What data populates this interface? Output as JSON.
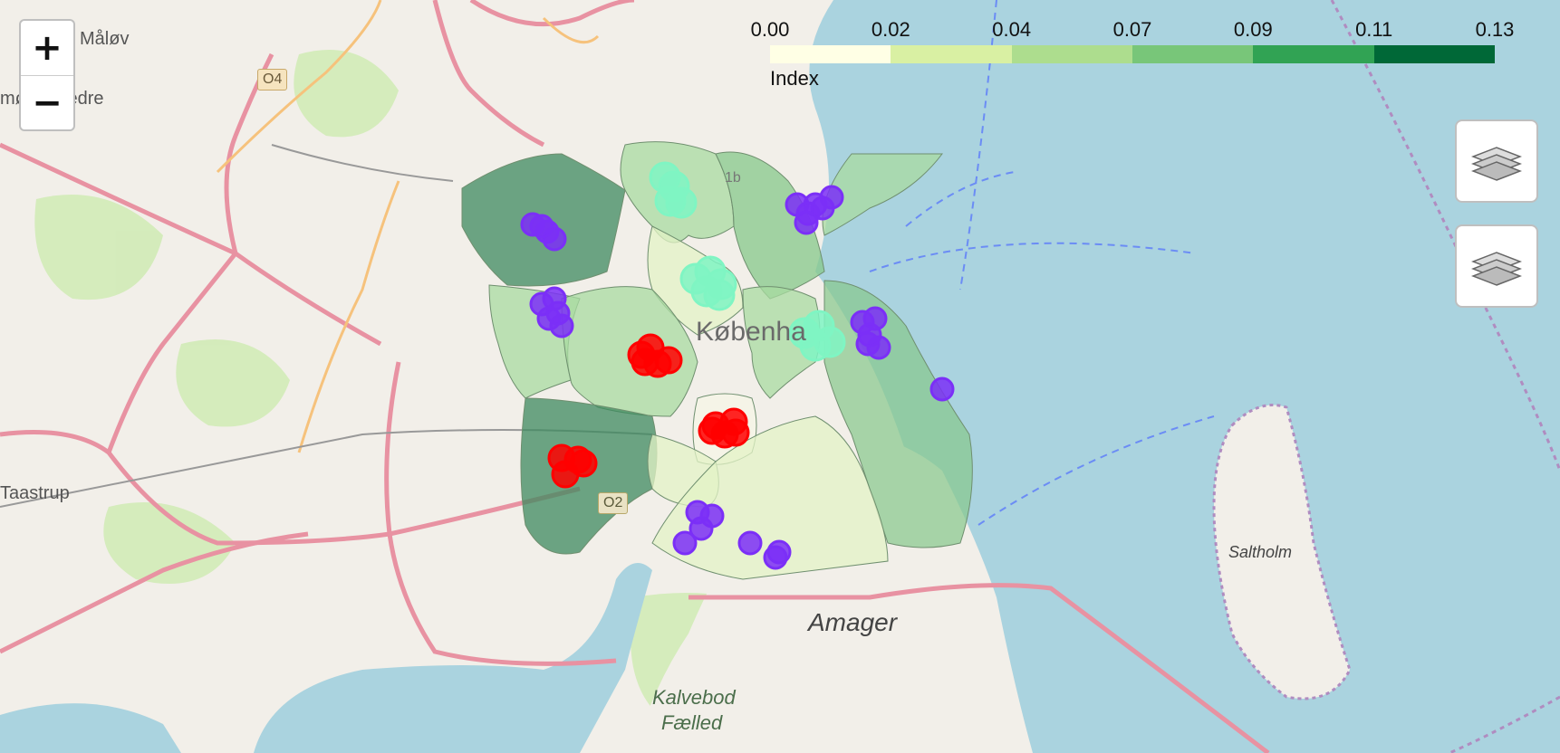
{
  "map": {
    "zoom_in_label": "+",
    "zoom_out_label": "−",
    "layer_controls": [
      "layers-toggle-1",
      "layers-toggle-2"
    ],
    "place_labels": [
      {
        "name": "København",
        "text": "Københa"
      },
      {
        "name": "Amager",
        "text": "Amager"
      },
      {
        "name": "Kalvebod Fælled",
        "text": "Kalvebod"
      },
      {
        "name": "Kalvebod Fælled 2",
        "text": "Fælled"
      },
      {
        "name": "Saltholm",
        "text": "Saltholm"
      },
      {
        "name": "Måløv",
        "text": "Måløv"
      },
      {
        "name": "Smørumnedre",
        "text": "mørumnedre"
      },
      {
        "name": "Taastrup",
        "text": "Taastrup"
      }
    ],
    "road_labels": [
      "O4",
      "O2",
      "1b"
    ],
    "colors": {
      "water": "#aad3df",
      "land": "#f2efe9",
      "motorway": "#e892a2",
      "purple_markers": "#7b2ff7",
      "red_markers": "#ff0000",
      "mint_markers": "#7ff5c3"
    }
  },
  "legend": {
    "ticks": [
      "0.00",
      "0.02",
      "0.04",
      "0.07",
      "0.09",
      "0.11",
      "0.13"
    ],
    "caption": "Index",
    "colors": [
      "#ffffe5",
      "#d9f0a3",
      "#addd8e",
      "#78c679",
      "#31a354",
      "#006837"
    ]
  }
}
